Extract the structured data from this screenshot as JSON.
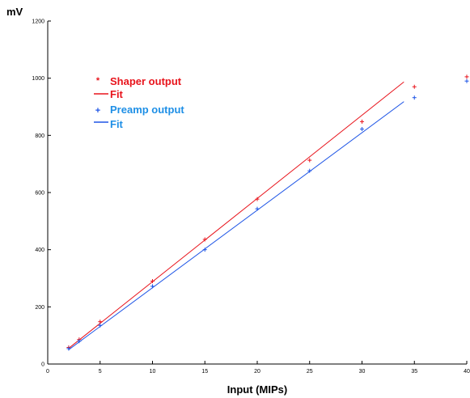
{
  "chart_data": {
    "type": "scatter",
    "xlabel": "Input  (MIPs)",
    "ylabel": "mV",
    "xlim": [
      0,
      40
    ],
    "ylim": [
      0,
      1200
    ],
    "xticks": [
      0,
      5,
      10,
      15,
      20,
      25,
      30,
      35,
      40
    ],
    "yticks": [
      0,
      200,
      400,
      600,
      800,
      1000,
      1200
    ],
    "grid": false,
    "legend_position": "upper-left",
    "series": [
      {
        "name": "Shaper output",
        "kind": "points",
        "marker": "+",
        "color": "#e8141c",
        "x": [
          2,
          3,
          5,
          10,
          15,
          20,
          25,
          30,
          35,
          40
        ],
        "y": [
          58,
          86,
          148,
          290,
          436,
          577,
          713,
          848,
          970,
          1005
        ]
      },
      {
        "name": "Fit",
        "kind": "line",
        "color": "#e8141c",
        "x": [
          2,
          34
        ],
        "y": [
          55,
          987
        ]
      },
      {
        "name": "Preamp output",
        "kind": "points",
        "marker": "+",
        "color": "#1e55e6",
        "x": [
          2,
          3,
          5,
          10,
          15,
          20,
          25,
          30,
          35,
          40
        ],
        "y": [
          54,
          80,
          135,
          272,
          400,
          543,
          676,
          822,
          932,
          990
        ]
      },
      {
        "name": "Fit",
        "kind": "line",
        "color": "#1e55e6",
        "x": [
          2,
          34
        ],
        "y": [
          50,
          918
        ]
      }
    ]
  },
  "legend_colors": {
    "shaper_text": "#e8141c",
    "preamp_text": "#1e8fe6"
  }
}
